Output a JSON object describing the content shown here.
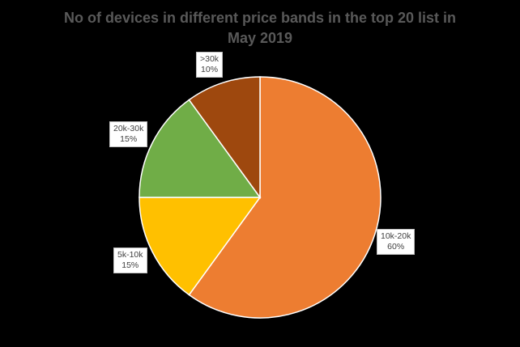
{
  "chart_data": {
    "type": "pie",
    "title": "No of devices in different price bands in the top 20 list in May 2019",
    "title_lines": [
      "No of devices in different price bands in the top 20 list in",
      "May 2019"
    ],
    "categories": [
      "10k-20k",
      "5k-10k",
      "20k-30k",
      ">30k"
    ],
    "values": [
      60,
      15,
      15,
      10
    ],
    "unit": "%",
    "colors": [
      "#ED7D31",
      "#FFC000",
      "#70AD47",
      "#9E480E"
    ],
    "labels": [
      {
        "category": "10k-20k",
        "value": "60%"
      },
      {
        "category": "5k-10k",
        "value": "15%"
      },
      {
        "category": "20k-30k",
        "value": "15%"
      },
      {
        "category": ">30k",
        "value": "10%"
      }
    ],
    "legend": "none",
    "start_angle": "12 o'clock, clockwise"
  }
}
